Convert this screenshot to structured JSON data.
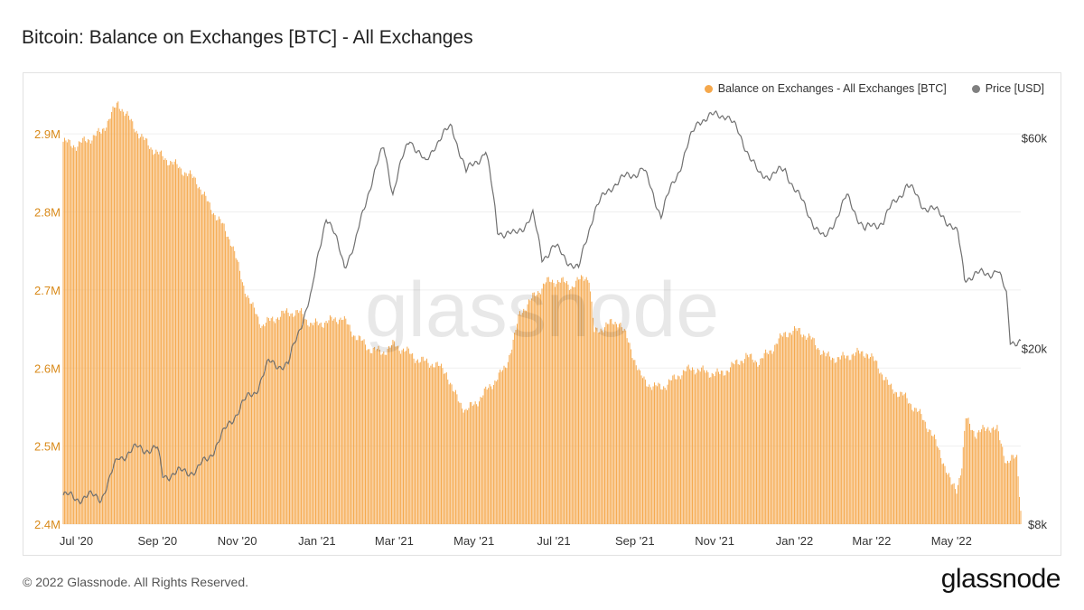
{
  "header": {
    "title": "Bitcoin: Balance on Exchanges [BTC] - All Exchanges"
  },
  "footer": {
    "copyright": "© 2022 Glassnode. All Rights Reserved.",
    "logo": "glassnode"
  },
  "watermark": "glassnode",
  "colors": {
    "balance": "#f7931a",
    "balance_fill": "#f5a84c",
    "price": "#777777",
    "axis_left": "#d98a1a"
  },
  "chart_data": {
    "type": "bar",
    "x_tick_labels": [
      "Jul '20",
      "Sep '20",
      "Nov '20",
      "Jan '21",
      "Mar '21",
      "May '21",
      "Jul '21",
      "Sep '21",
      "Nov '21",
      "Jan '22",
      "Mar '22",
      "May '22"
    ],
    "y_left_ticks": [
      "2.4M",
      "2.5M",
      "2.6M",
      "2.7M",
      "2.8M",
      "2.9M"
    ],
    "y_right_ticks": [
      "$8k",
      "$20k",
      "$60k"
    ],
    "ylim_left": [
      2400000,
      2950000
    ],
    "ylim_right_log": [
      8000,
      75000
    ],
    "legend_position": "top-right",
    "series": [
      {
        "name": "Balance on Exchanges - All Exchanges [BTC]",
        "axis": "left",
        "points": [
          [
            "2020-06-21",
            2890000
          ],
          [
            "2020-07-01",
            2885000
          ],
          [
            "2020-07-10",
            2893000
          ],
          [
            "2020-07-20",
            2902000
          ],
          [
            "2020-07-28",
            2925000
          ],
          [
            "2020-08-02",
            2940000
          ],
          [
            "2020-08-10",
            2920000
          ],
          [
            "2020-08-20",
            2895000
          ],
          [
            "2020-09-01",
            2875000
          ],
          [
            "2020-09-15",
            2860000
          ],
          [
            "2020-10-01",
            2840000
          ],
          [
            "2020-10-10",
            2810000
          ],
          [
            "2020-10-20",
            2785000
          ],
          [
            "2020-10-28",
            2760000
          ],
          [
            "2020-11-05",
            2710000
          ],
          [
            "2020-11-12",
            2680000
          ],
          [
            "2020-11-20",
            2655000
          ],
          [
            "2020-12-01",
            2665000
          ],
          [
            "2020-12-10",
            2672000
          ],
          [
            "2020-12-20",
            2670000
          ],
          [
            "2020-12-28",
            2655000
          ],
          [
            "2021-01-10",
            2660000
          ],
          [
            "2021-01-20",
            2665000
          ],
          [
            "2021-01-30",
            2642000
          ],
          [
            "2021-02-10",
            2625000
          ],
          [
            "2021-02-20",
            2620000
          ],
          [
            "2021-03-01",
            2630000
          ],
          [
            "2021-03-10",
            2622000
          ],
          [
            "2021-03-20",
            2610000
          ],
          [
            "2021-04-01",
            2605000
          ],
          [
            "2021-04-10",
            2595000
          ],
          [
            "2021-04-15",
            2570000
          ],
          [
            "2021-04-25",
            2545000
          ],
          [
            "2021-05-05",
            2560000
          ],
          [
            "2021-05-15",
            2580000
          ],
          [
            "2021-05-25",
            2600000
          ],
          [
            "2021-06-01",
            2640000
          ],
          [
            "2021-06-05",
            2670000
          ],
          [
            "2021-06-15",
            2690000
          ],
          [
            "2021-06-25",
            2710000
          ],
          [
            "2021-07-05",
            2712000
          ],
          [
            "2021-07-15",
            2705000
          ],
          [
            "2021-07-25",
            2718000
          ],
          [
            "2021-07-28",
            2715000
          ],
          [
            "2021-08-01",
            2645000
          ],
          [
            "2021-08-10",
            2655000
          ],
          [
            "2021-08-20",
            2660000
          ],
          [
            "2021-08-28",
            2630000
          ],
          [
            "2021-09-05",
            2590000
          ],
          [
            "2021-09-15",
            2575000
          ],
          [
            "2021-09-25",
            2578000
          ],
          [
            "2021-10-05",
            2592000
          ],
          [
            "2021-10-15",
            2600000
          ],
          [
            "2021-10-25",
            2595000
          ],
          [
            "2021-11-05",
            2592000
          ],
          [
            "2021-11-15",
            2603000
          ],
          [
            "2021-11-25",
            2615000
          ],
          [
            "2021-12-05",
            2608000
          ],
          [
            "2021-12-15",
            2625000
          ],
          [
            "2021-12-25",
            2645000
          ],
          [
            "2022-01-05",
            2648000
          ],
          [
            "2022-01-15",
            2635000
          ],
          [
            "2022-01-25",
            2615000
          ],
          [
            "2022-02-05",
            2612000
          ],
          [
            "2022-02-15",
            2618000
          ],
          [
            "2022-02-25",
            2620000
          ],
          [
            "2022-03-05",
            2605000
          ],
          [
            "2022-03-15",
            2575000
          ],
          [
            "2022-03-25",
            2565000
          ],
          [
            "2022-04-05",
            2545000
          ],
          [
            "2022-04-15",
            2520000
          ],
          [
            "2022-04-25",
            2480000
          ],
          [
            "2022-05-01",
            2450000
          ],
          [
            "2022-05-05",
            2445000
          ],
          [
            "2022-05-09",
            2475000
          ],
          [
            "2022-05-12",
            2535000
          ],
          [
            "2022-05-20",
            2515000
          ],
          [
            "2022-05-30",
            2525000
          ],
          [
            "2022-06-05",
            2520000
          ],
          [
            "2022-06-12",
            2480000
          ],
          [
            "2022-06-20",
            2485000
          ],
          [
            "2022-06-23",
            2420000
          ]
        ]
      },
      {
        "name": "Price [USD]",
        "axis": "right",
        "points": [
          [
            "2020-06-21",
            9300
          ],
          [
            "2020-07-01",
            9150
          ],
          [
            "2020-07-10",
            9250
          ],
          [
            "2020-07-20",
            9200
          ],
          [
            "2020-07-26",
            10000
          ],
          [
            "2020-08-02",
            11300
          ],
          [
            "2020-08-17",
            11900
          ],
          [
            "2020-09-01",
            11800
          ],
          [
            "2020-09-05",
            10300
          ],
          [
            "2020-09-20",
            10500
          ],
          [
            "2020-10-01",
            10600
          ],
          [
            "2020-10-10",
            11300
          ],
          [
            "2020-10-22",
            12900
          ],
          [
            "2020-11-05",
            15000
          ],
          [
            "2020-11-15",
            16000
          ],
          [
            "2020-11-25",
            18500
          ],
          [
            "2020-12-10",
            18300
          ],
          [
            "2020-12-16",
            21000
          ],
          [
            "2020-12-28",
            26500
          ],
          [
            "2021-01-08",
            40000
          ],
          [
            "2021-01-22",
            31000
          ],
          [
            "2021-01-30",
            34000
          ],
          [
            "2021-02-08",
            44000
          ],
          [
            "2021-02-21",
            57000
          ],
          [
            "2021-02-28",
            45000
          ],
          [
            "2021-03-13",
            60000
          ],
          [
            "2021-03-25",
            52000
          ],
          [
            "2021-04-01",
            58000
          ],
          [
            "2021-04-14",
            63500
          ],
          [
            "2021-04-25",
            50000
          ],
          [
            "2021-05-10",
            56000
          ],
          [
            "2021-05-19",
            37000
          ],
          [
            "2021-06-01",
            36000
          ],
          [
            "2021-06-15",
            40000
          ],
          [
            "2021-06-22",
            32000
          ],
          [
            "2021-07-01",
            34000
          ],
          [
            "2021-07-20",
            30000
          ],
          [
            "2021-08-01",
            41000
          ],
          [
            "2021-08-15",
            47000
          ],
          [
            "2021-09-07",
            51000
          ],
          [
            "2021-09-21",
            40000
          ],
          [
            "2021-10-05",
            51000
          ],
          [
            "2021-10-20",
            66000
          ],
          [
            "2021-11-10",
            68000
          ],
          [
            "2021-11-25",
            57000
          ],
          [
            "2021-12-05",
            49000
          ],
          [
            "2021-12-25",
            50500
          ],
          [
            "2022-01-10",
            41000
          ],
          [
            "2022-01-24",
            35000
          ],
          [
            "2022-02-10",
            44000
          ],
          [
            "2022-02-24",
            37000
          ],
          [
            "2022-03-10",
            39000
          ],
          [
            "2022-03-28",
            47000
          ],
          [
            "2022-04-10",
            42000
          ],
          [
            "2022-04-25",
            40000
          ],
          [
            "2022-05-06",
            36000
          ],
          [
            "2022-05-11",
            29000
          ],
          [
            "2022-05-25",
            29500
          ],
          [
            "2022-06-05",
            30000
          ],
          [
            "2022-06-12",
            26500
          ],
          [
            "2022-06-15",
            21000
          ],
          [
            "2022-06-23",
            20500
          ]
        ]
      }
    ]
  }
}
